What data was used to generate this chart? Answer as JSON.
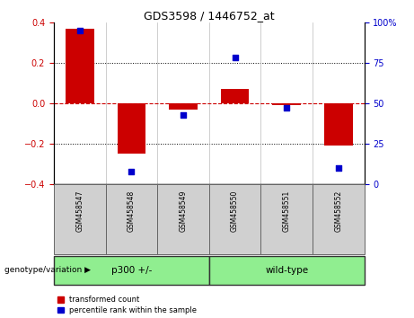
{
  "title": "GDS3598 / 1446752_at",
  "samples": [
    "GSM458547",
    "GSM458548",
    "GSM458549",
    "GSM458550",
    "GSM458551",
    "GSM458552"
  ],
  "red_bars": [
    0.37,
    -0.25,
    -0.03,
    0.07,
    -0.01,
    -0.21
  ],
  "blue_dots": [
    95,
    8,
    43,
    78,
    47,
    10
  ],
  "groups": [
    {
      "label": "p300 +/-",
      "start": 0,
      "end": 3,
      "color": "#90EE90"
    },
    {
      "label": "wild-type",
      "start": 3,
      "end": 6,
      "color": "#90EE90"
    }
  ],
  "group_label": "genotype/variation",
  "ylim_left": [
    -0.4,
    0.4
  ],
  "ylim_right": [
    0,
    100
  ],
  "yticks_left": [
    -0.4,
    -0.2,
    0.0,
    0.2,
    0.4
  ],
  "yticks_right": [
    0,
    25,
    50,
    75,
    100
  ],
  "legend_items": [
    "transformed count",
    "percentile rank within the sample"
  ],
  "bar_color": "#cc0000",
  "dot_color": "#0000cc",
  "zero_line_color": "#cc0000",
  "grid_color": "#000000",
  "bg_plot": "#ffffff",
  "sample_box_color": "#d0d0d0",
  "figure_bg": "#ffffff"
}
